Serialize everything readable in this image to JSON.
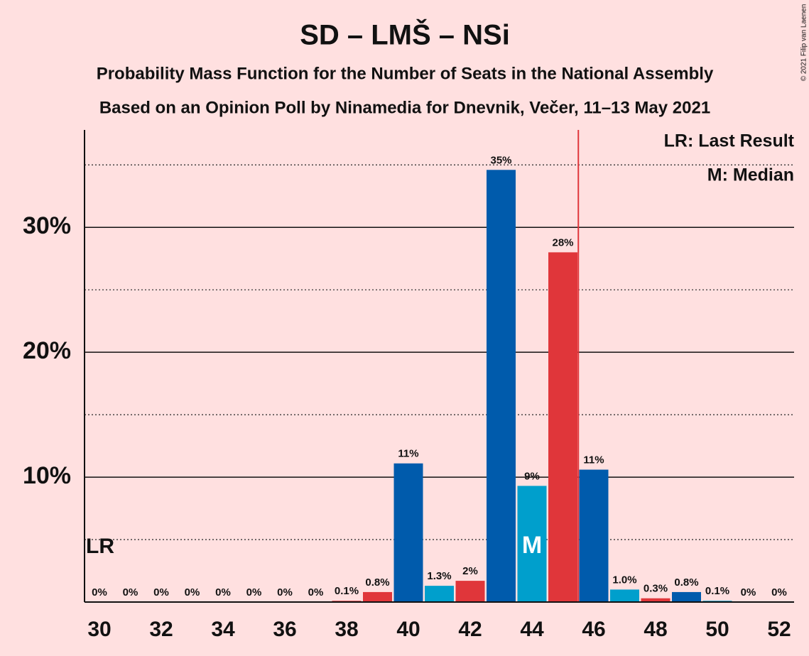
{
  "chart_data": {
    "type": "bar",
    "title": "SD – LMŠ – NSi",
    "subtitle": "Probability Mass Function for the Number of Seats in the National Assembly",
    "subtitle2": "Based on an Opinion Poll by Ninamedia for Dnevnik, Večer, 11–13 May 2021",
    "copyright": "© 2021 Filip van Laenen",
    "legend": [
      "LR: Last Result",
      "M: Median"
    ],
    "categories": [
      30,
      null,
      32,
      null,
      34,
      null,
      36,
      null,
      38,
      null,
      40,
      null,
      42,
      null,
      44,
      null,
      46,
      null,
      48,
      null,
      50,
      null,
      52
    ],
    "values": [
      0,
      0,
      0,
      0,
      0,
      0,
      0,
      0,
      0.1,
      0.8,
      11.1,
      1.3,
      1.7,
      34.6,
      9.3,
      28,
      10.6,
      1.0,
      0.3,
      0.8,
      0.1,
      0,
      0
    ],
    "value_labels": [
      "0%",
      "0%",
      "0%",
      "0%",
      "0%",
      "0%",
      "0%",
      "0%",
      "0.1%",
      "0.8%",
      "11%",
      "1.3%",
      "2%",
      "35%",
      "9%",
      "28%",
      "11%",
      "1.0%",
      "0.3%",
      "0.8%",
      "0.1%",
      "0%",
      "0%"
    ],
    "colors": [
      "#005BAC",
      "#009FCC",
      "#E0363A",
      "#005BAC",
      "#009FCC",
      "#E0363A",
      "#005BAC",
      "#009FCC",
      "#E0363A",
      "#E0363A",
      "#005BAC",
      "#009FCC",
      "#E0363A",
      "#005BAC",
      "#009FCC",
      "#E0363A",
      "#005BAC",
      "#009FCC",
      "#E0363A",
      "#005BAC",
      "#009FCC",
      "#E0363A",
      "#005BAC"
    ],
    "ylim": [
      0,
      37.8
    ],
    "yticks": [
      {
        "value": 10,
        "label": "10%"
      },
      {
        "value": 20,
        "label": "20%"
      },
      {
        "value": 30,
        "label": "30%"
      }
    ],
    "minor_grid": [
      5,
      15,
      25,
      35
    ],
    "median_index": 14,
    "median_label": "M",
    "last_result_index": 0,
    "last_result_label": "LR",
    "majority_line_x": 45.5,
    "majority_line_color": "#E0363A"
  }
}
